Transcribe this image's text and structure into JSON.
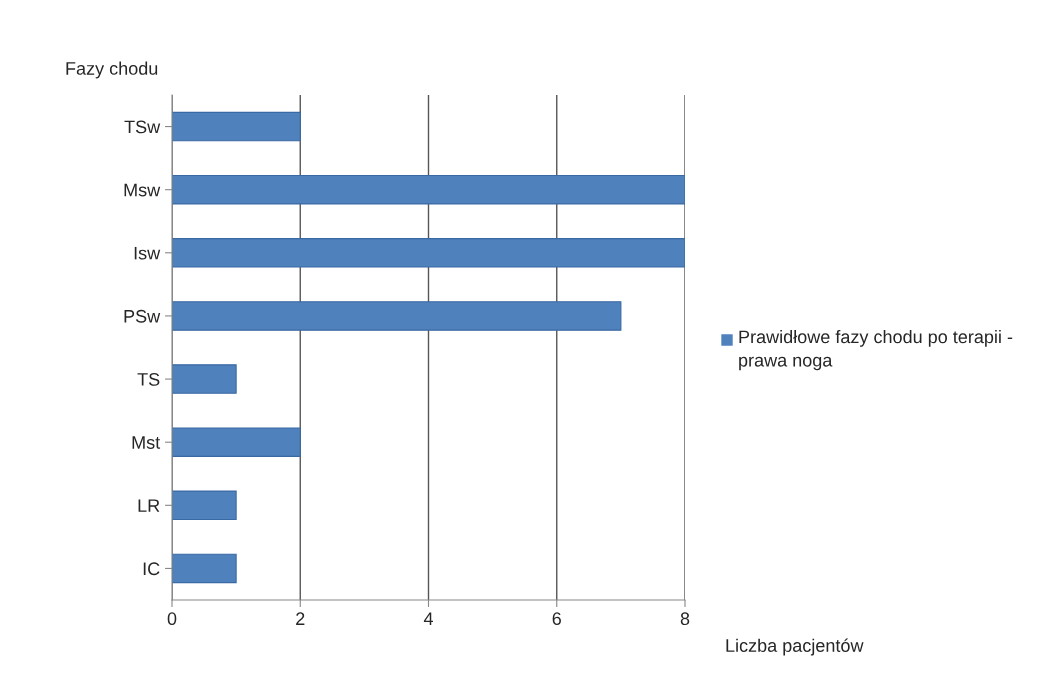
{
  "chart_data": {
    "type": "bar",
    "orientation": "horizontal",
    "categories": [
      "TSw",
      "Msw",
      "Isw",
      "PSw",
      "TS",
      "Mst",
      "LR",
      "IC"
    ],
    "series": [
      {
        "name": "Prawidłowe fazy chodu po terapii - prawa noga",
        "color": "#4f81bd",
        "values": [
          2,
          8,
          8,
          7,
          1,
          2,
          1,
          1
        ]
      }
    ],
    "xlim": [
      0,
      8
    ],
    "xticks": [
      0,
      2,
      4,
      6,
      8
    ],
    "xlabel": "Liczba pacjentów",
    "ylabel": "Fazy chodu",
    "grid": "x",
    "legend": "right"
  }
}
